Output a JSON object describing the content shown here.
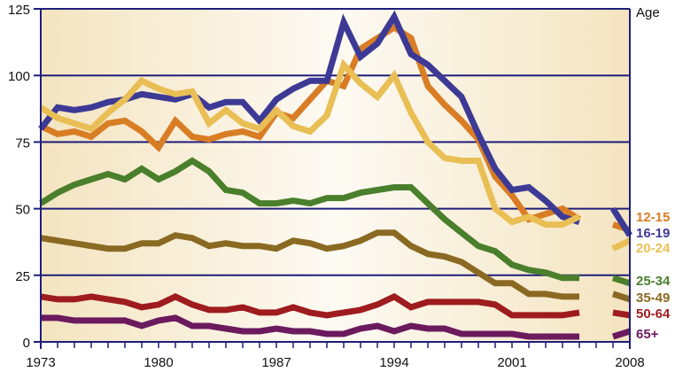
{
  "chart_data": {
    "type": "line",
    "title": "",
    "xlabel": "",
    "ylabel": "",
    "legend_title": "Age",
    "legend_placement": "right",
    "xlim": [
      1973,
      2008
    ],
    "ylim": [
      0,
      125
    ],
    "yticks": [
      0,
      25,
      50,
      75,
      100,
      125
    ],
    "xticks": [
      1973,
      1980,
      1987,
      1994,
      2001,
      2008
    ],
    "grid": true,
    "x": [
      1973,
      1974,
      1975,
      1976,
      1977,
      1978,
      1979,
      1980,
      1981,
      1982,
      1983,
      1984,
      1985,
      1986,
      1987,
      1988,
      1989,
      1990,
      1991,
      1992,
      1993,
      1994,
      1995,
      1996,
      1997,
      1998,
      1999,
      2000,
      2001,
      2002,
      2003,
      2004,
      2005,
      2006,
      2007,
      2008
    ],
    "series": [
      {
        "name": "12-15",
        "color": "#d97d25",
        "values": [
          81,
          78,
          79,
          77,
          82,
          83,
          79,
          73,
          83,
          77,
          76,
          78,
          79,
          77,
          86,
          84,
          91,
          98,
          96,
          110,
          114,
          118,
          114,
          96,
          89,
          83,
          76,
          62,
          55,
          46,
          48,
          50,
          46,
          null,
          44,
          42
        ]
      },
      {
        "name": "16-19",
        "color": "#3d3a96",
        "values": [
          80,
          88,
          87,
          88,
          90,
          91,
          93,
          92,
          91,
          93,
          88,
          90,
          90,
          83,
          91,
          95,
          98,
          98,
          120,
          107,
          112,
          122,
          108,
          104,
          98,
          92,
          78,
          65,
          57,
          58,
          53,
          47,
          45,
          null,
          50,
          40
        ]
      },
      {
        "name": "20-24",
        "color": "#e9bf55",
        "values": [
          88,
          84,
          82,
          80,
          86,
          91,
          98,
          95,
          93,
          94,
          82,
          87,
          82,
          80,
          87,
          81,
          79,
          85,
          104,
          97,
          92,
          100,
          86,
          75,
          69,
          68,
          68,
          50,
          45,
          47,
          44,
          44,
          47,
          null,
          35,
          38
        ]
      },
      {
        "name": "25-34",
        "color": "#4a7f2c",
        "values": [
          52,
          56,
          59,
          61,
          63,
          61,
          65,
          61,
          64,
          68,
          64,
          57,
          56,
          52,
          52,
          53,
          52,
          54,
          54,
          56,
          57,
          58,
          58,
          52,
          46,
          41,
          36,
          34,
          29,
          27,
          26,
          24,
          24,
          null,
          24,
          22
        ]
      },
      {
        "name": "35-49",
        "color": "#8a6a22",
        "values": [
          39,
          38,
          37,
          36,
          35,
          35,
          37,
          37,
          40,
          39,
          36,
          37,
          36,
          36,
          35,
          38,
          37,
          35,
          36,
          38,
          41,
          41,
          36,
          33,
          32,
          30,
          26,
          22,
          22,
          18,
          18,
          17,
          17,
          null,
          18,
          16
        ]
      },
      {
        "name": "50-64",
        "color": "#9e1b1e",
        "values": [
          17,
          16,
          16,
          17,
          16,
          15,
          13,
          14,
          17,
          14,
          12,
          12,
          13,
          11,
          11,
          13,
          11,
          10,
          11,
          12,
          14,
          17,
          13,
          15,
          15,
          15,
          15,
          14,
          10,
          10,
          10,
          10,
          11,
          null,
          11,
          10
        ]
      },
      {
        "name": "65+",
        "color": "#6b1a5e",
        "values": [
          9,
          9,
          8,
          8,
          8,
          8,
          6,
          8,
          9,
          6,
          6,
          5,
          4,
          4,
          5,
          4,
          4,
          3,
          3,
          5,
          6,
          4,
          6,
          5,
          5,
          3,
          3,
          3,
          3,
          2,
          2,
          2,
          2,
          null,
          2,
          4
        ]
      }
    ]
  }
}
